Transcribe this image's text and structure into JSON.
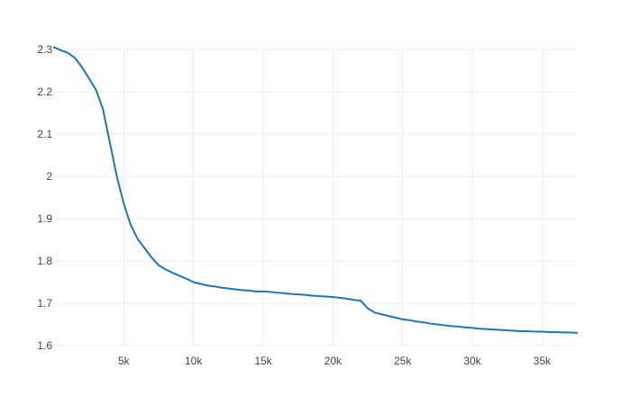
{
  "chart_data": {
    "type": "line",
    "title": "",
    "xlabel": "",
    "ylabel": "",
    "xlim": [
      0,
      37500
    ],
    "ylim": [
      1.6,
      2.3
    ],
    "grid": true,
    "legend": "none",
    "line_color": "#1f77b4",
    "grid_color": "#eeeeee",
    "x_ticks": [
      {
        "value": 5000,
        "label": "5k"
      },
      {
        "value": 10000,
        "label": "10k"
      },
      {
        "value": 15000,
        "label": "15k"
      },
      {
        "value": 20000,
        "label": "20k"
      },
      {
        "value": 25000,
        "label": "25k"
      },
      {
        "value": 30000,
        "label": "30k"
      },
      {
        "value": 35000,
        "label": "35k"
      }
    ],
    "y_ticks": [
      {
        "value": 1.6,
        "label": "1.6"
      },
      {
        "value": 1.7,
        "label": "1.7"
      },
      {
        "value": 1.8,
        "label": "1.8"
      },
      {
        "value": 1.9,
        "label": "1.9"
      },
      {
        "value": 2.0,
        "label": "2"
      },
      {
        "value": 2.1,
        "label": "2.1"
      },
      {
        "value": 2.2,
        "label": "2.2"
      },
      {
        "value": 2.3,
        "label": "2.3"
      }
    ],
    "series": [
      {
        "x": [
          0,
          500,
          1000,
          1500,
          2000,
          2500,
          3000,
          3500,
          4000,
          4500,
          5000,
          5500,
          6000,
          6500,
          7000,
          7500,
          8000,
          8500,
          9000,
          9500,
          10000,
          10500,
          11000,
          11500,
          12000,
          12500,
          13000,
          13500,
          14000,
          14500,
          15000,
          15500,
          16000,
          16500,
          17000,
          17500,
          18000,
          18500,
          19000,
          19500,
          20000,
          20500,
          21000,
          21500,
          22000,
          22500,
          23000,
          23500,
          24000,
          24500,
          25000,
          25500,
          26000,
          26500,
          27000,
          27500,
          28000,
          28500,
          29000,
          29500,
          30000,
          30500,
          31000,
          31500,
          32000,
          32500,
          33000,
          33500,
          34000,
          34500,
          35000,
          35500,
          36000,
          36500,
          37000,
          37500
        ],
        "y": [
          2.305,
          2.298,
          2.292,
          2.28,
          2.258,
          2.232,
          2.205,
          2.16,
          2.08,
          2.0,
          1.935,
          1.885,
          1.852,
          1.83,
          1.808,
          1.79,
          1.78,
          1.772,
          1.765,
          1.758,
          1.75,
          1.746,
          1.742,
          1.74,
          1.737,
          1.735,
          1.733,
          1.731,
          1.73,
          1.728,
          1.728,
          1.727,
          1.725,
          1.724,
          1.722,
          1.721,
          1.72,
          1.718,
          1.717,
          1.716,
          1.715,
          1.713,
          1.711,
          1.708,
          1.706,
          1.688,
          1.678,
          1.674,
          1.67,
          1.666,
          1.662,
          1.66,
          1.657,
          1.655,
          1.652,
          1.65,
          1.648,
          1.646,
          1.645,
          1.643,
          1.642,
          1.64,
          1.639,
          1.638,
          1.637,
          1.636,
          1.635,
          1.634,
          1.634,
          1.633,
          1.633,
          1.632,
          1.632,
          1.631,
          1.631,
          1.63
        ]
      }
    ]
  }
}
